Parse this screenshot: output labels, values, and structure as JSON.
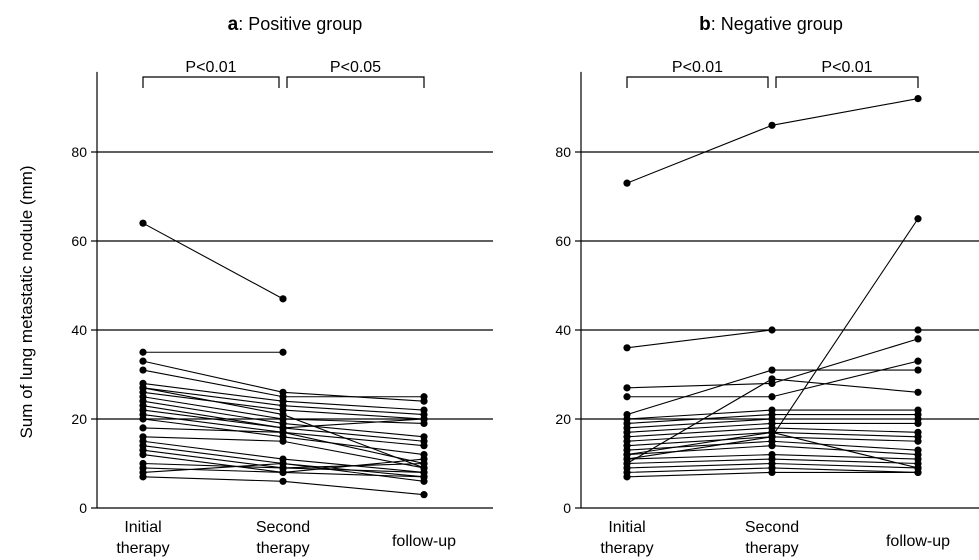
{
  "figure": {
    "ylabel": "Sum of lung metastatic nodule (mm)"
  },
  "chart_data": [
    {
      "type": "line",
      "panel": "a",
      "title": "Positive group",
      "categories": [
        "Initial\ntherapy",
        "Second\ntherapy",
        "follow-up"
      ],
      "ylabel": "Sum of lung metastatic nodule (mm)",
      "ylim": [
        0,
        98
      ],
      "yticks": [
        0,
        20,
        40,
        60,
        80
      ],
      "grid": true,
      "significance": [
        {
          "from": 0,
          "to": 1,
          "label": "P<0.01"
        },
        {
          "from": 1,
          "to": 2,
          "label": "P<0.05"
        }
      ],
      "series": [
        {
          "values": [
            64,
            47,
            null
          ]
        },
        {
          "values": [
            35,
            35,
            null
          ]
        },
        {
          "values": [
            33,
            26,
            24
          ]
        },
        {
          "values": [
            31,
            25,
            25
          ]
        },
        {
          "values": [
            28,
            24,
            22
          ]
        },
        {
          "values": [
            27,
            23,
            21
          ]
        },
        {
          "values": [
            26,
            22,
            20
          ]
        },
        {
          "values": [
            25,
            20,
            19
          ]
        },
        {
          "values": [
            24,
            19,
            16
          ]
        },
        {
          "values": [
            22,
            18,
            15
          ]
        },
        {
          "values": [
            21,
            17,
            14
          ]
        },
        {
          "values": [
            20,
            16,
            12
          ]
        },
        {
          "values": [
            18,
            17,
            10
          ]
        },
        {
          "values": [
            16,
            15,
            9
          ]
        },
        {
          "values": [
            15,
            11,
            8
          ]
        },
        {
          "values": [
            14,
            10,
            7
          ]
        },
        {
          "values": [
            13,
            9,
            10
          ]
        },
        {
          "values": [
            12,
            8,
            11
          ]
        },
        {
          "values": [
            10,
            9,
            8
          ]
        },
        {
          "values": [
            9,
            8,
            7
          ]
        },
        {
          "values": [
            8,
            10,
            6
          ]
        },
        {
          "values": [
            7,
            6,
            3
          ]
        },
        {
          "values": [
            27,
            21,
            9
          ]
        },
        {
          "values": [
            23,
            18,
            20
          ]
        }
      ]
    },
    {
      "type": "line",
      "panel": "b",
      "title": "Negative group",
      "categories": [
        "Initial\ntherapy",
        "Second\ntherapy",
        "follow-up"
      ],
      "ylabel": "",
      "ylim": [
        0,
        98
      ],
      "yticks": [
        0,
        20,
        40,
        60,
        80
      ],
      "grid": true,
      "significance": [
        {
          "from": 0,
          "to": 1,
          "label": "P<0.01"
        },
        {
          "from": 1,
          "to": 2,
          "label": "P<0.01"
        }
      ],
      "series": [
        {
          "values": [
            73,
            86,
            92
          ]
        },
        {
          "values": [
            36,
            40,
            40
          ]
        },
        {
          "values": [
            27,
            28,
            38
          ]
        },
        {
          "values": [
            25,
            25,
            33
          ]
        },
        {
          "values": [
            21,
            31,
            31
          ]
        },
        {
          "values": [
            20,
            22,
            22
          ]
        },
        {
          "values": [
            19,
            21,
            21
          ]
        },
        {
          "values": [
            18,
            20,
            20
          ]
        },
        {
          "values": [
            17,
            19,
            19
          ]
        },
        {
          "values": [
            16,
            18,
            17
          ]
        },
        {
          "values": [
            15,
            17,
            16
          ]
        },
        {
          "values": [
            14,
            16,
            15
          ]
        },
        {
          "values": [
            13,
            15,
            13
          ]
        },
        {
          "values": [
            12,
            14,
            12
          ]
        },
        {
          "values": [
            11,
            12,
            11
          ]
        },
        {
          "values": [
            10,
            11,
            10
          ]
        },
        {
          "values": [
            9,
            10,
            9
          ]
        },
        {
          "values": [
            8,
            9,
            8
          ]
        },
        {
          "values": [
            7,
            8,
            8
          ]
        },
        {
          "values": [
            11,
            16,
            65
          ]
        },
        {
          "values": [
            10,
            29,
            26
          ]
        },
        {
          "values": [
            12,
            17,
            9
          ]
        }
      ]
    }
  ]
}
